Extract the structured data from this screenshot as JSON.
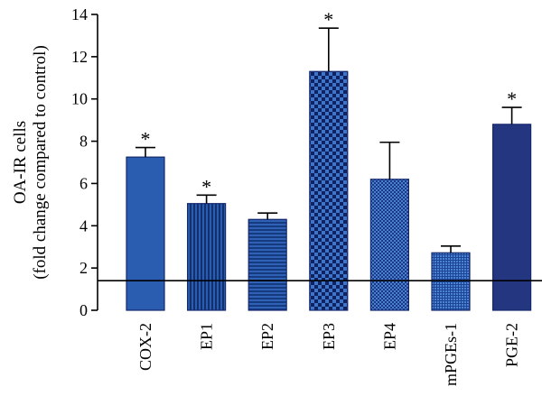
{
  "chart_data": {
    "type": "bar",
    "ylabel": [
      "OA-IR cells",
      "(fold change compared to control)"
    ],
    "ylim": [
      0,
      14
    ],
    "yticks": [
      0,
      2,
      4,
      6,
      8,
      10,
      12,
      14
    ],
    "grid": false,
    "reference_line": 1.4,
    "categories": [
      "COX-2",
      "EP1",
      "EP2",
      "EP3",
      "EP4",
      "mPGEs-1",
      "PGE-2"
    ],
    "values": [
      7.25,
      5.05,
      4.3,
      11.3,
      6.2,
      2.72,
      8.8
    ],
    "errors": [
      0.45,
      0.4,
      0.3,
      2.05,
      1.75,
      0.32,
      0.8
    ],
    "significant": [
      true,
      true,
      false,
      true,
      false,
      false,
      true
    ],
    "significance_marker": "*",
    "colors": {
      "COX-2": "#2a5db0",
      "EP1": "#1e4aa0",
      "EP2": "#2655a8",
      "EP3": "#1f3f98",
      "EP4": "#3561b5",
      "mPGEs-1": "#3a6dc0",
      "PGE-2": "#24367f"
    },
    "patterns": [
      "solid",
      "vertical-stripes",
      "horizontal-stripes",
      "checker",
      "fine-checker",
      "fine-grid",
      "solid"
    ]
  }
}
